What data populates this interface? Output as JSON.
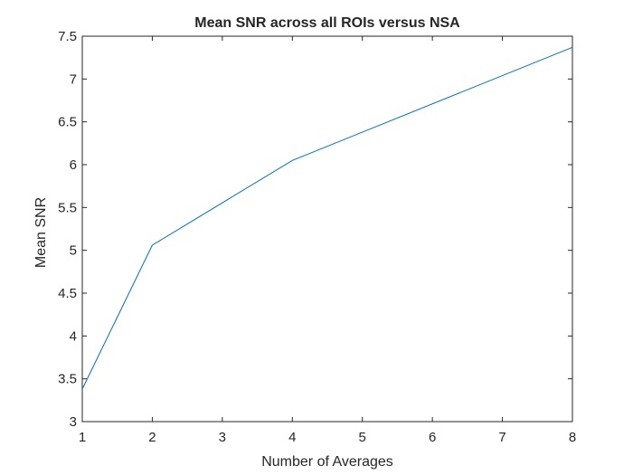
{
  "chart_data": {
    "type": "line",
    "title": "Mean SNR across all ROIs versus NSA",
    "xlabel": "Number of Averages",
    "ylabel": "Mean SNR",
    "xlim": [
      1,
      8
    ],
    "ylim": [
      3,
      7.5
    ],
    "xticks": [
      1,
      2,
      3,
      4,
      5,
      6,
      7,
      8
    ],
    "xtick_labels": [
      "1",
      "2",
      "3",
      "4",
      "5",
      "6",
      "7",
      "8"
    ],
    "yticks": [
      3,
      3.5,
      4,
      4.5,
      5,
      5.5,
      6,
      6.5,
      7,
      7.5
    ],
    "ytick_labels": [
      "3",
      "3.5",
      "4",
      "4.5",
      "5",
      "5.5",
      "6",
      "6.5",
      "7",
      "7.5"
    ],
    "grid": false,
    "box": true,
    "series": [
      {
        "x": [
          1,
          2,
          4,
          8
        ],
        "y": [
          3.38,
          5.06,
          6.05,
          7.37
        ],
        "color": "#0072BD"
      }
    ]
  }
}
